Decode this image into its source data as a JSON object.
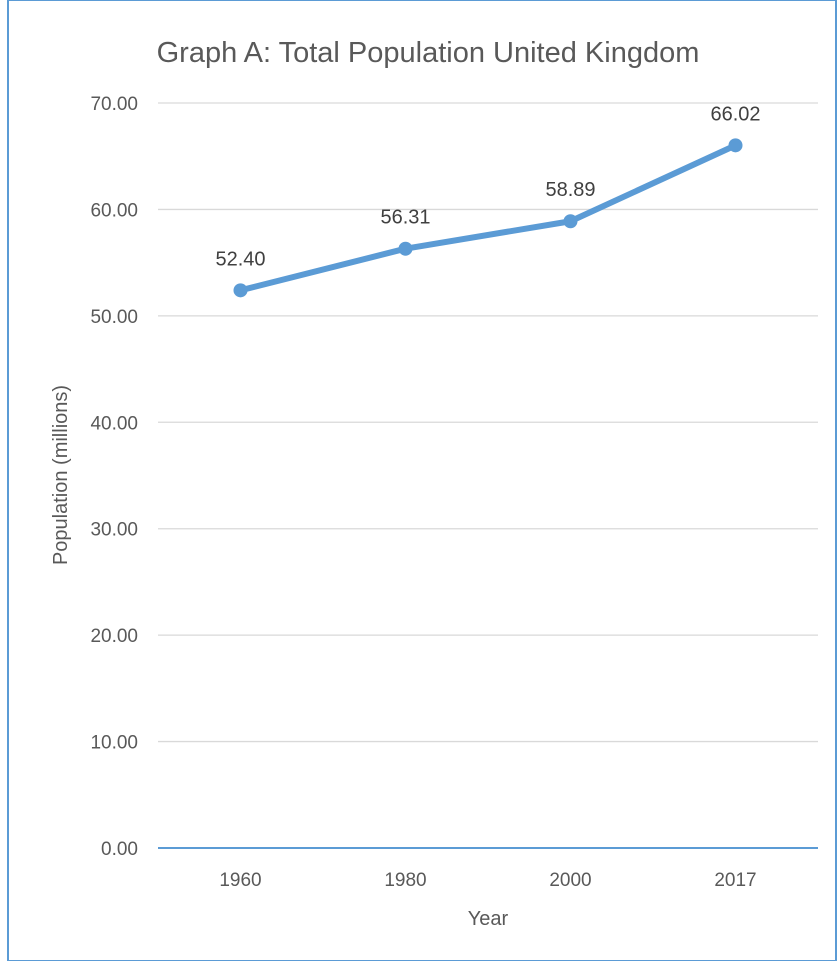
{
  "chart_data": {
    "type": "line",
    "title": "Graph A: Total Population United Kingdom",
    "xlabel": "Year",
    "ylabel": "Population (millions)",
    "categories": [
      "1960",
      "1980",
      "2000",
      "2017"
    ],
    "series": [
      {
        "values": [
          52.4,
          56.31,
          58.89,
          66.02
        ]
      }
    ],
    "data_labels": [
      "52.40",
      "56.31",
      "58.89",
      "66.02"
    ],
    "y_ticks": [
      "0.00",
      "10.00",
      "20.00",
      "30.00",
      "40.00",
      "50.00",
      "60.00",
      "70.00"
    ],
    "ylim": [
      0,
      70
    ],
    "grid": true,
    "legend": "none",
    "colors": {
      "series": "#5b9bd5",
      "frame": "#5b9bd5",
      "grid": "#d9d9d9",
      "text": "#595959"
    }
  }
}
